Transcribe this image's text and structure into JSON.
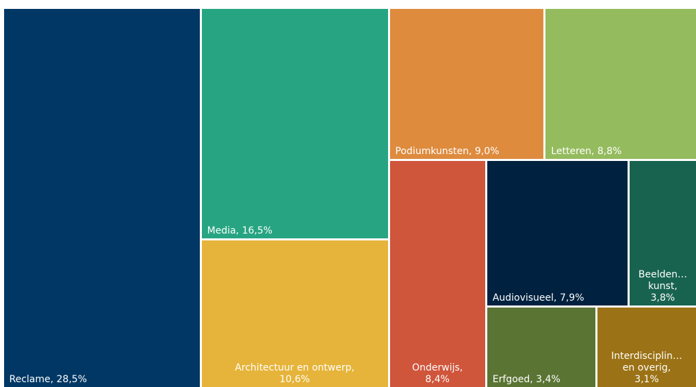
{
  "chart_data": {
    "type": "treemap",
    "values": [
      28.5,
      16.5,
      10.6,
      9.0,
      8.8,
      8.4,
      7.9,
      3.8,
      3.4,
      3.1
    ],
    "value_labels": [
      "Reclame, 28,5%",
      "Media, 16,5%",
      "Architectuur en ontwerp,\n10,6%",
      "Podiumkunsten, 9,0%",
      "Letteren, 8,8%",
      "Onderwijs,\n8,4%",
      "Audiovisueel, 7,9%",
      "Beelden…\nkunst,\n3,8%",
      "Erfgoed, 3,4%",
      "Interdisciplin…\nen overig,\n3,1%"
    ],
    "colors": [
      "#003764",
      "#27a582",
      "#e6b43a",
      "#de8b3e",
      "#94bb5d",
      "#cf553b",
      "#00213f",
      "#18634f",
      "#5a7433",
      "#9b7215"
    ]
  }
}
